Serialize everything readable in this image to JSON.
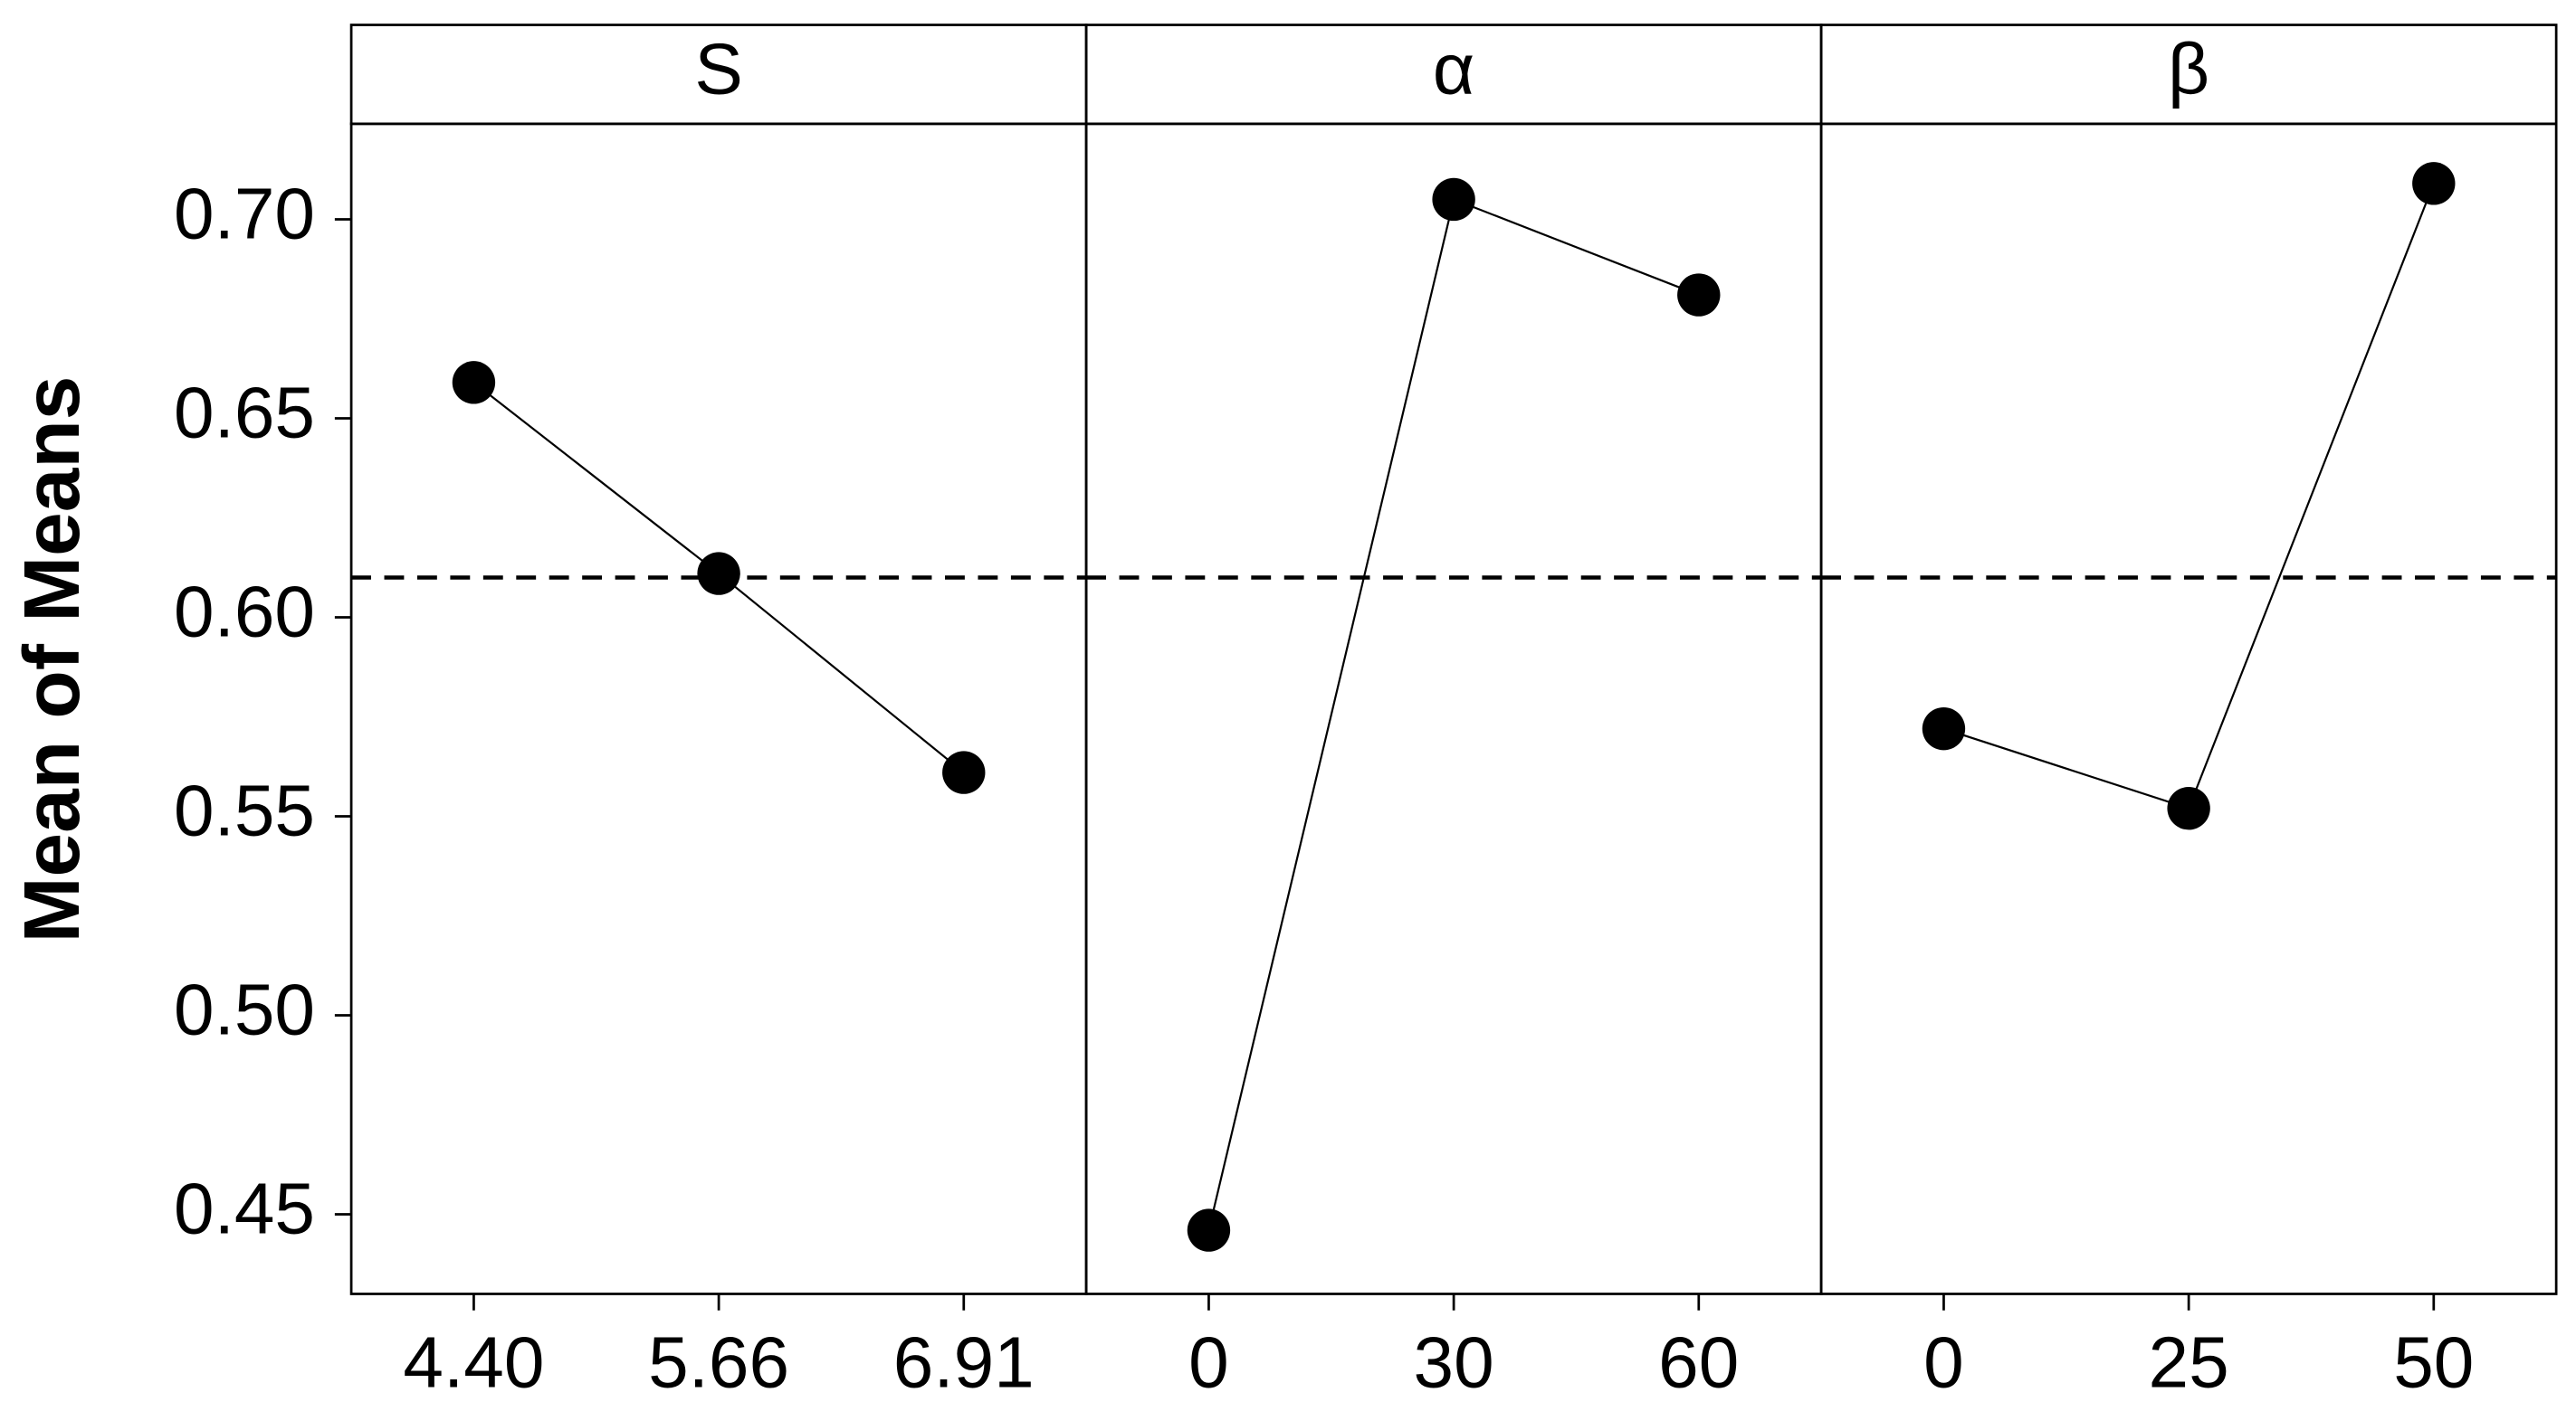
{
  "chart_data": {
    "type": "line",
    "y_label": "Mean of Means",
    "ylim": [
      0.43,
      0.724
    ],
    "yticks": [
      0.45,
      {
        "value": 0.5,
        "label": "0.50"
      },
      0.55,
      {
        "value": 0.6,
        "label": "0.60"
      },
      0.65,
      {
        "value": 0.7,
        "label": "0.70"
      }
    ],
    "reference_line": 0.61,
    "color": "#000000",
    "panels": [
      {
        "title": "S",
        "categories": [
          "4.40",
          "5.66",
          "6.91"
        ],
        "values": [
          0.659,
          0.611,
          0.561
        ]
      },
      {
        "title": "α",
        "categories": [
          "0",
          "30",
          "60"
        ],
        "values": [
          0.446,
          0.705,
          0.681
        ]
      },
      {
        "title": "β",
        "categories": [
          "0",
          "25",
          "50"
        ],
        "values": [
          0.572,
          0.552,
          0.709
        ]
      }
    ]
  }
}
